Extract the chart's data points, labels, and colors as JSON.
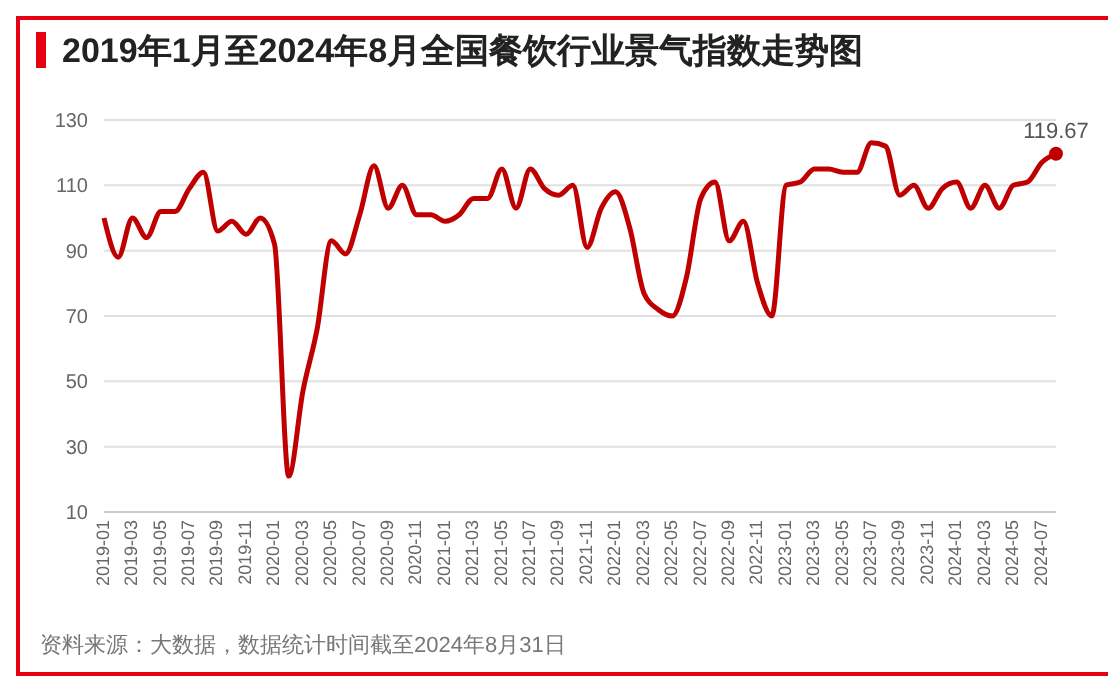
{
  "chart_data": {
    "type": "line",
    "title": "2019年1月至2024年8月全国餐饮行业景气指数走势图",
    "categories": [
      "2019-01",
      null,
      "2019-03",
      null,
      "2019-05",
      null,
      "2019-07",
      null,
      "2019-09",
      null,
      "2019-11",
      null,
      "2020-01",
      null,
      "2020-03",
      null,
      "2020-05",
      null,
      "2020-07",
      null,
      "2020-09",
      null,
      "2020-11",
      null,
      "2021-01",
      null,
      "2021-03",
      null,
      "2021-05",
      null,
      "2021-07",
      null,
      "2021-09",
      null,
      "2021-11",
      null,
      "2022-01",
      null,
      "2022-03",
      null,
      "2022-05",
      null,
      "2022-07",
      null,
      "2022-09",
      null,
      "2022-11",
      null,
      "2023-01",
      null,
      "2023-03",
      null,
      "2023-05",
      null,
      "2023-07",
      null,
      "2023-09",
      null,
      "2023-11",
      null,
      "2024-01",
      null,
      "2024-03",
      null,
      "2024-05",
      null,
      "2024-07",
      null
    ],
    "series": [
      {
        "color": "#c00000",
        "values": [
          100,
          88,
          100,
          94,
          102,
          102,
          109,
          114,
          96,
          99,
          95,
          100,
          92,
          21,
          47,
          66,
          93,
          89,
          101,
          116,
          103,
          110,
          101,
          101,
          99,
          101,
          106,
          106,
          115,
          103,
          115,
          109,
          107,
          110,
          91,
          103,
          108,
          97,
          77,
          72,
          70,
          82,
          106,
          111,
          93,
          99,
          80,
          70,
          110,
          111,
          115,
          115,
          114,
          114,
          123,
          122,
          107,
          110,
          103,
          109,
          111,
          103,
          110,
          103,
          110,
          111,
          117,
          119.67
        ],
        "value_labels": [
          null,
          null,
          null,
          null,
          null,
          null,
          null,
          null,
          null,
          null,
          null,
          null,
          null,
          null,
          null,
          null,
          null,
          null,
          null,
          null,
          null,
          null,
          null,
          null,
          null,
          null,
          null,
          null,
          null,
          null,
          null,
          null,
          null,
          null,
          null,
          null,
          null,
          null,
          null,
          null,
          null,
          null,
          null,
          null,
          null,
          null,
          null,
          null,
          null,
          null,
          null,
          null,
          null,
          null,
          null,
          null,
          null,
          null,
          null,
          null,
          null,
          null,
          null,
          null,
          null,
          null,
          null,
          "119.67"
        ]
      }
    ],
    "ylim": [
      10,
      130
    ],
    "yticks": [
      10,
      30,
      50,
      70,
      90,
      110,
      130
    ],
    "grid": "y",
    "marker": "none",
    "line_style": "solid",
    "annotations": [
      "资料来源：大数据，数据统计时间截至2024年8月31日"
    ]
  }
}
